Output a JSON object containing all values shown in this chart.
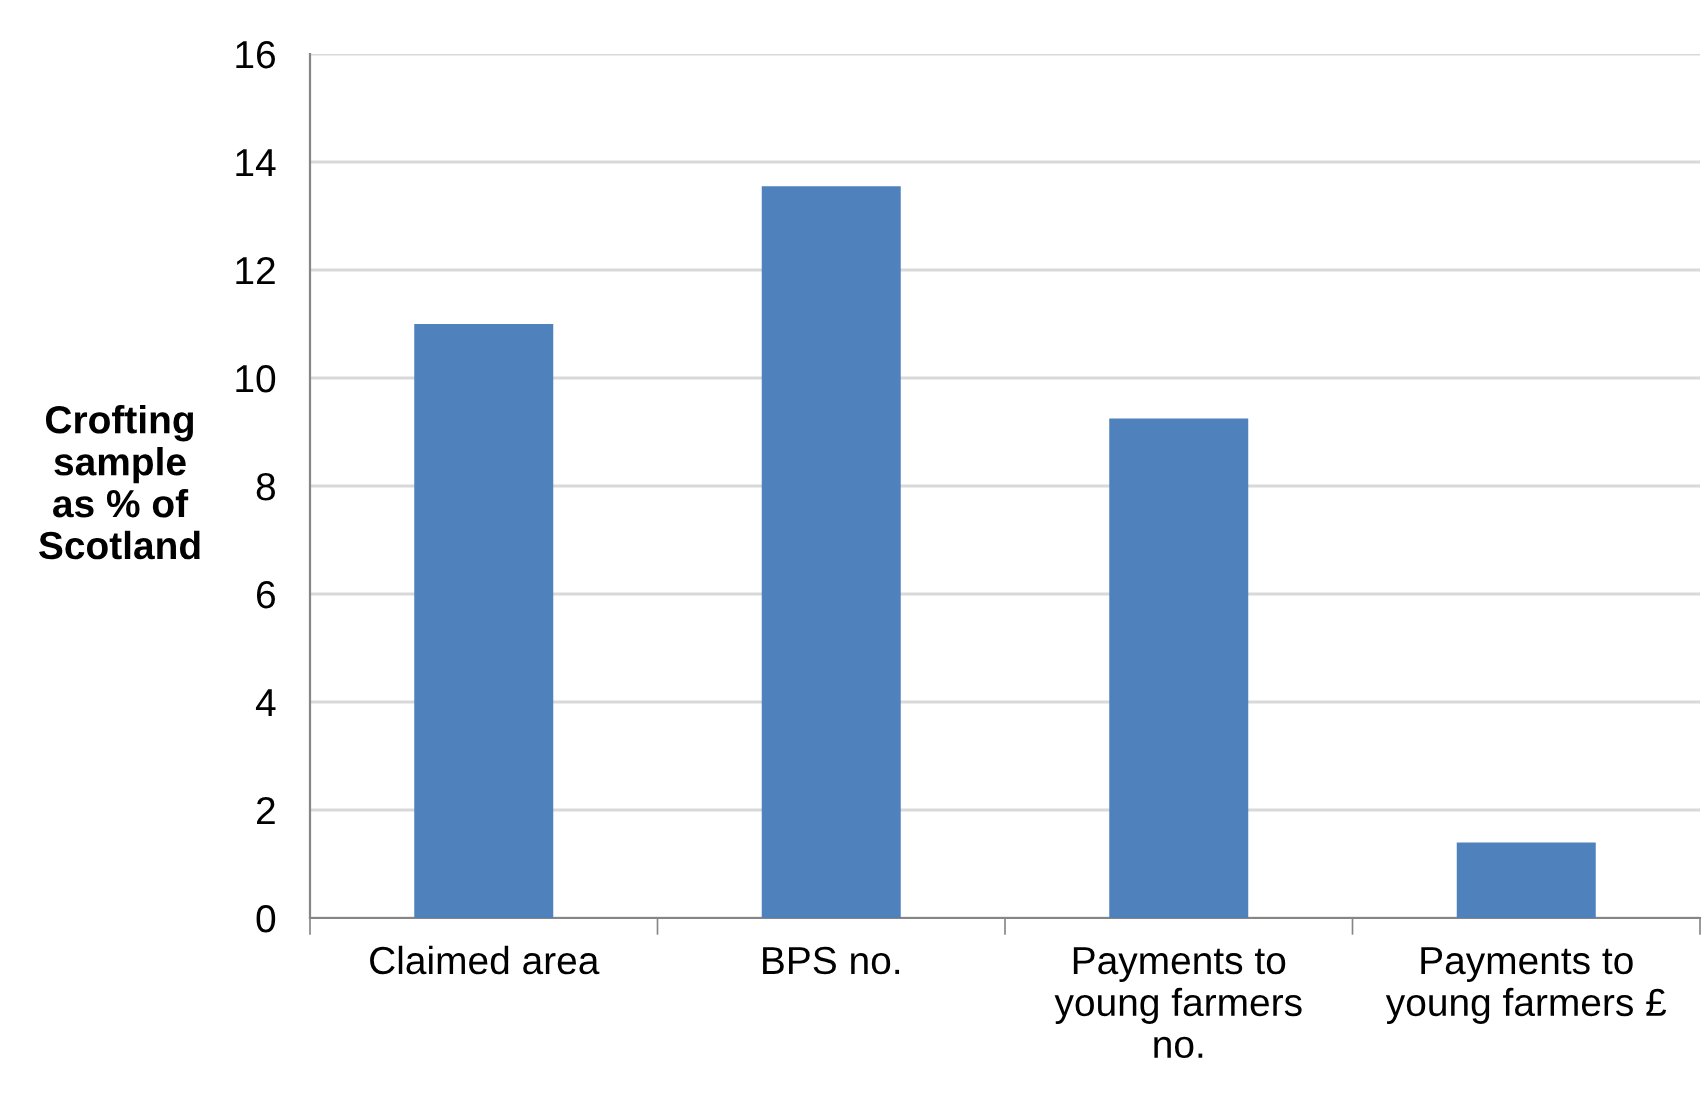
{
  "chart_data": {
    "type": "bar",
    "categories": [
      "Claimed area",
      "BPS no.",
      "Payments to\nyoung farmers\nno.",
      "Payments to\nyoung farmers £"
    ],
    "values": [
      11.0,
      13.55,
      9.25,
      1.4
    ],
    "color": "#4f81bd",
    "ylabel": "Crofting\nsample\nas % of\nScotland",
    "ylim": [
      0,
      16
    ],
    "yticks": [
      0,
      2,
      4,
      6,
      8,
      10,
      12,
      14,
      16
    ],
    "grid": "y",
    "legend": false
  }
}
